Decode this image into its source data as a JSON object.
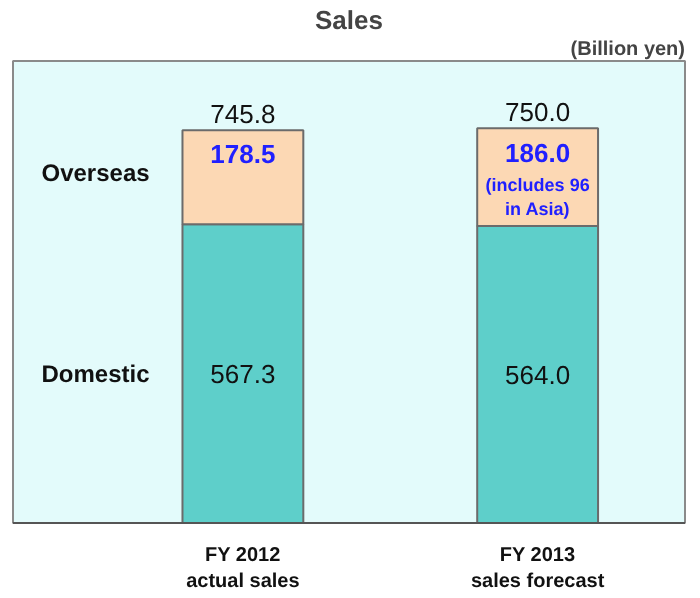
{
  "chart_data": {
    "type": "bar",
    "stacked": true,
    "title": "Sales",
    "annotations": [
      "(Billion yen)",
      "(includes 96\nin Asia)"
    ],
    "categories": [
      "FY 2012\nactual sales",
      "FY 2013\nsales forecast"
    ],
    "series": [
      {
        "name": "Domestic",
        "color": "#5ecfca",
        "values": [
          567.3,
          564.0
        ],
        "value_labels": [
          "567.3",
          "564.0"
        ]
      },
      {
        "name": "Overseas",
        "color": "#fcd8b4",
        "values": [
          178.5,
          186.0
        ],
        "value_labels": [
          "178.5",
          "186.0"
        ]
      }
    ],
    "totals": [
      "745.8",
      "750.0"
    ],
    "grid": false
  }
}
